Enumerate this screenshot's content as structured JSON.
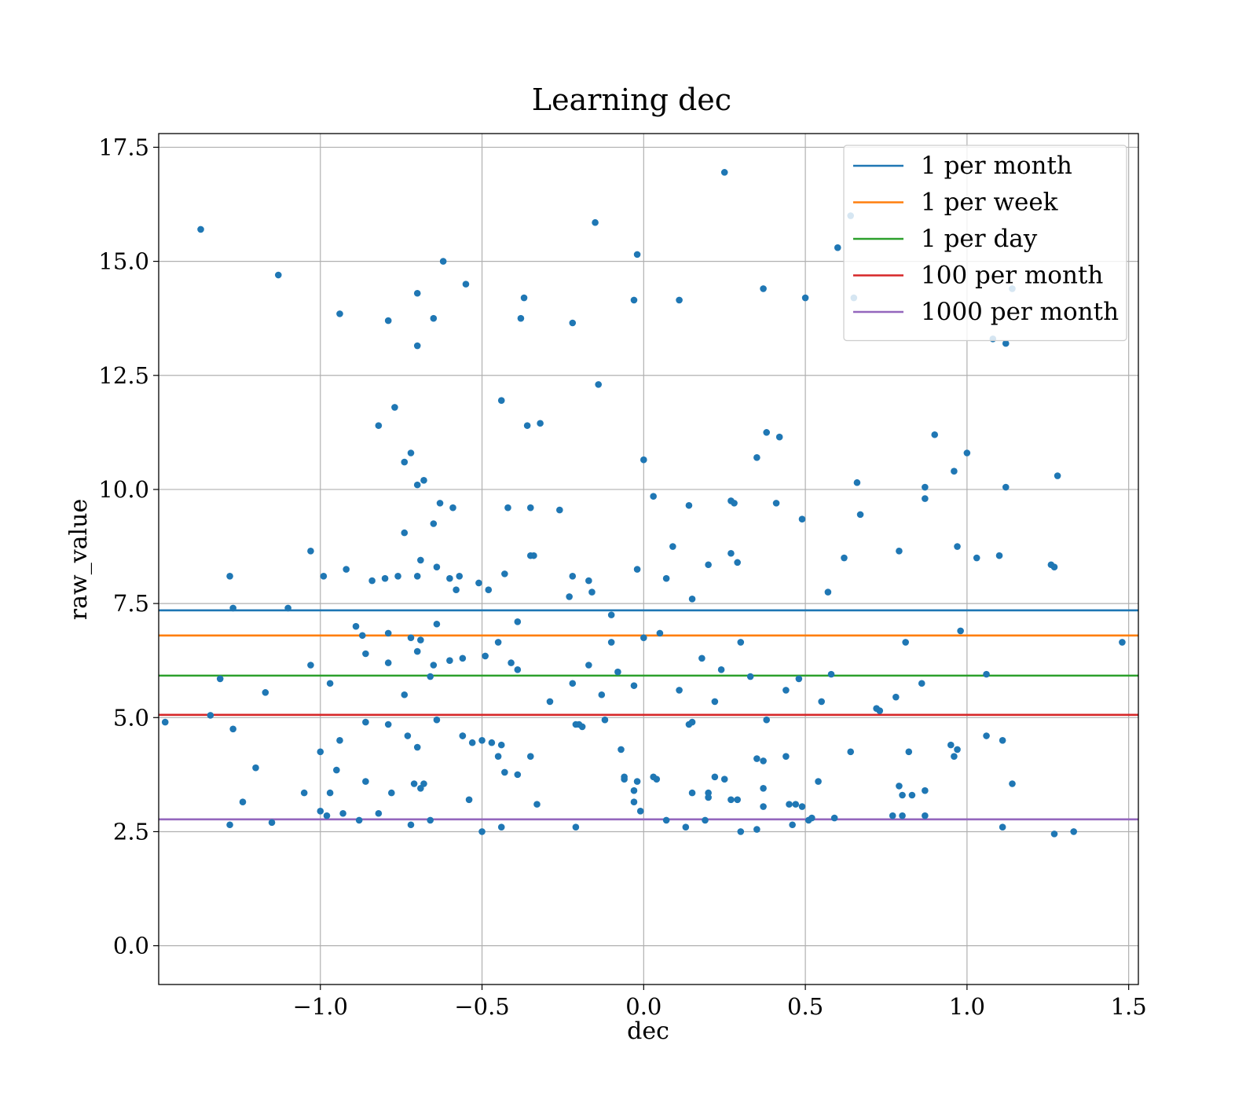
{
  "chart_data": {
    "type": "scatter",
    "title": "Learning dec",
    "xlabel": "dec",
    "ylabel": "raw_value",
    "xlim": [
      -1.5,
      1.53
    ],
    "ylim": [
      -0.85,
      17.8
    ],
    "xticks": [
      -1.0,
      -0.5,
      0.0,
      0.5,
      1.0,
      1.5
    ],
    "xtick_labels": [
      "−1.0",
      "−0.5",
      "0.0",
      "0.5",
      "1.0",
      "1.5"
    ],
    "yticks": [
      0.0,
      2.5,
      5.0,
      7.5,
      10.0,
      12.5,
      15.0,
      17.5
    ],
    "ytick_labels": [
      "0.0",
      "2.5",
      "5.0",
      "7.5",
      "10.0",
      "12.5",
      "15.0",
      "17.5"
    ],
    "grid": true,
    "legend_position": "top-right",
    "point_color": "#1f77b4",
    "hlines": [
      {
        "name": "1 per month",
        "y": 7.35,
        "color": "#1f77b4"
      },
      {
        "name": "1 per week",
        "y": 6.8,
        "color": "#ff7f0e"
      },
      {
        "name": "1 per day",
        "y": 5.92,
        "color": "#2ca02c"
      },
      {
        "name": "100 per month",
        "y": 5.06,
        "color": "#d62728"
      },
      {
        "name": "1000 per month",
        "y": 2.77,
        "color": "#9467bd"
      }
    ],
    "points": [
      [
        -1.37,
        15.7
      ],
      [
        -1.13,
        14.7
      ],
      [
        -0.94,
        13.85
      ],
      [
        -0.79,
        13.7
      ],
      [
        -0.7,
        14.3
      ],
      [
        -0.7,
        13.15
      ],
      [
        -0.65,
        13.75
      ],
      [
        -0.62,
        15.0
      ],
      [
        -0.55,
        14.5
      ],
      [
        -0.37,
        14.2
      ],
      [
        -0.38,
        13.75
      ],
      [
        -0.22,
        13.65
      ],
      [
        -0.15,
        15.85
      ],
      [
        -0.03,
        14.15
      ],
      [
        -0.02,
        15.15
      ],
      [
        0.11,
        14.15
      ],
      [
        0.25,
        16.95
      ],
      [
        0.37,
        14.4
      ],
      [
        0.5,
        14.2
      ],
      [
        0.6,
        15.3
      ],
      [
        0.64,
        16.0
      ],
      [
        0.65,
        14.2
      ],
      [
        1.08,
        13.3
      ],
      [
        1.12,
        13.2
      ],
      [
        1.14,
        14.4
      ],
      [
        -0.82,
        11.4
      ],
      [
        -0.77,
        11.8
      ],
      [
        -0.44,
        11.95
      ],
      [
        -0.36,
        11.4
      ],
      [
        -0.32,
        11.45
      ],
      [
        -0.14,
        12.3
      ],
      [
        -0.74,
        10.6
      ],
      [
        -0.72,
        10.8
      ],
      [
        -0.7,
        10.1
      ],
      [
        -0.68,
        10.2
      ],
      [
        -0.63,
        9.7
      ],
      [
        -0.59,
        9.6
      ],
      [
        -0.42,
        9.6
      ],
      [
        -0.35,
        9.6
      ],
      [
        -0.26,
        9.55
      ],
      [
        0.0,
        10.65
      ],
      [
        0.03,
        9.85
      ],
      [
        0.14,
        9.65
      ],
      [
        0.35,
        10.7
      ],
      [
        0.38,
        11.25
      ],
      [
        0.42,
        11.15
      ],
      [
        0.41,
        9.7
      ],
      [
        0.27,
        9.75
      ],
      [
        0.28,
        9.7
      ],
      [
        0.49,
        9.35
      ],
      [
        0.66,
        10.15
      ],
      [
        0.67,
        9.45
      ],
      [
        0.87,
        10.05
      ],
      [
        0.87,
        9.8
      ],
      [
        0.9,
        11.2
      ],
      [
        0.96,
        10.4
      ],
      [
        1.0,
        10.8
      ],
      [
        1.12,
        10.05
      ],
      [
        1.28,
        10.3
      ],
      [
        -0.74,
        9.05
      ],
      [
        -0.65,
        9.25
      ],
      [
        -0.64,
        8.3
      ],
      [
        -0.69,
        8.45
      ],
      [
        -0.35,
        8.55
      ],
      [
        -0.34,
        8.55
      ],
      [
        -0.43,
        8.15
      ],
      [
        -0.02,
        8.25
      ],
      [
        0.09,
        8.75
      ],
      [
        0.2,
        8.35
      ],
      [
        0.27,
        8.6
      ],
      [
        0.29,
        8.4
      ],
      [
        0.62,
        8.5
      ],
      [
        0.79,
        8.65
      ],
      [
        0.97,
        8.75
      ],
      [
        1.03,
        8.5
      ],
      [
        1.1,
        8.55
      ],
      [
        1.26,
        8.35
      ],
      [
        1.27,
        8.3
      ],
      [
        -1.28,
        8.1
      ],
      [
        -1.03,
        8.65
      ],
      [
        -0.99,
        8.1
      ],
      [
        -0.92,
        8.25
      ],
      [
        -0.84,
        8.0
      ],
      [
        -0.8,
        8.05
      ],
      [
        -0.76,
        8.1
      ],
      [
        -0.7,
        8.1
      ],
      [
        -0.6,
        8.05
      ],
      [
        -0.57,
        8.1
      ],
      [
        -0.51,
        7.95
      ],
      [
        -0.58,
        7.8
      ],
      [
        -0.48,
        7.8
      ],
      [
        -0.22,
        8.1
      ],
      [
        -0.23,
        7.65
      ],
      [
        -0.17,
        8.0
      ],
      [
        -0.16,
        7.75
      ],
      [
        0.07,
        8.05
      ],
      [
        0.15,
        7.6
      ],
      [
        0.57,
        7.75
      ],
      [
        -1.27,
        7.4
      ],
      [
        -1.1,
        7.4
      ],
      [
        -0.89,
        7.0
      ],
      [
        -0.39,
        7.1
      ],
      [
        -0.1,
        7.25
      ],
      [
        -0.87,
        6.8
      ],
      [
        -0.79,
        6.85
      ],
      [
        -0.72,
        6.75
      ],
      [
        -0.69,
        6.7
      ],
      [
        -0.64,
        7.05
      ],
      [
        -0.6,
        6.25
      ],
      [
        -0.56,
        6.3
      ],
      [
        -0.49,
        6.35
      ],
      [
        -0.45,
        6.65
      ],
      [
        -0.41,
        6.2
      ],
      [
        -0.39,
        6.05
      ],
      [
        -0.7,
        6.45
      ],
      [
        -0.66,
        5.9
      ],
      [
        -0.86,
        6.4
      ],
      [
        -0.79,
        6.2
      ],
      [
        -0.65,
        6.15
      ],
      [
        -1.03,
        6.15
      ],
      [
        0.05,
        6.85
      ],
      [
        0.0,
        6.75
      ],
      [
        -0.1,
        6.65
      ],
      [
        -0.08,
        6.0
      ],
      [
        0.18,
        6.3
      ],
      [
        0.24,
        6.05
      ],
      [
        0.3,
        6.65
      ],
      [
        0.33,
        5.9
      ],
      [
        0.48,
        5.85
      ],
      [
        0.58,
        5.95
      ],
      [
        0.81,
        6.65
      ],
      [
        0.98,
        6.9
      ],
      [
        1.06,
        5.95
      ],
      [
        1.48,
        6.65
      ],
      [
        -0.17,
        6.15
      ],
      [
        -1.31,
        5.85
      ],
      [
        -1.17,
        5.55
      ],
      [
        -0.97,
        5.75
      ],
      [
        -0.74,
        5.5
      ],
      [
        -0.29,
        5.35
      ],
      [
        -0.22,
        5.75
      ],
      [
        -0.13,
        5.5
      ],
      [
        -0.03,
        5.7
      ],
      [
        0.11,
        5.6
      ],
      [
        0.22,
        5.35
      ],
      [
        0.44,
        5.6
      ],
      [
        0.55,
        5.35
      ],
      [
        0.73,
        5.15
      ],
      [
        0.72,
        5.2
      ],
      [
        0.78,
        5.45
      ],
      [
        0.86,
        5.75
      ],
      [
        -1.48,
        4.9
      ],
      [
        -1.34,
        5.05
      ],
      [
        -1.27,
        4.75
      ],
      [
        -0.86,
        4.9
      ],
      [
        -0.79,
        4.85
      ],
      [
        -0.73,
        4.6
      ],
      [
        -0.7,
        4.35
      ],
      [
        -0.64,
        4.95
      ],
      [
        -0.56,
        4.6
      ],
      [
        -0.53,
        4.45
      ],
      [
        -0.5,
        4.5
      ],
      [
        -0.47,
        4.45
      ],
      [
        -0.45,
        4.15
      ],
      [
        -0.43,
        3.8
      ],
      [
        -0.39,
        3.75
      ],
      [
        -0.35,
        4.15
      ],
      [
        -0.21,
        4.85
      ],
      [
        -0.2,
        4.85
      ],
      [
        -0.19,
        4.8
      ],
      [
        -0.12,
        4.95
      ],
      [
        -0.07,
        4.3
      ],
      [
        0.14,
        4.85
      ],
      [
        0.15,
        4.9
      ],
      [
        0.35,
        4.1
      ],
      [
        0.37,
        4.05
      ],
      [
        0.38,
        4.95
      ],
      [
        0.44,
        4.15
      ],
      [
        0.64,
        4.25
      ],
      [
        0.82,
        4.25
      ],
      [
        0.95,
        4.4
      ],
      [
        0.96,
        4.15
      ],
      [
        0.97,
        4.3
      ],
      [
        1.06,
        4.6
      ],
      [
        1.11,
        4.5
      ],
      [
        -1.0,
        4.25
      ],
      [
        -0.94,
        4.5
      ],
      [
        -1.2,
        3.9
      ],
      [
        -0.95,
        3.85
      ],
      [
        -0.86,
        3.6
      ],
      [
        -0.56,
        4.6
      ],
      [
        -0.44,
        4.4
      ],
      [
        -1.24,
        3.15
      ],
      [
        -1.05,
        3.35
      ],
      [
        -0.97,
        3.35
      ],
      [
        -0.78,
        3.35
      ],
      [
        -0.71,
        3.55
      ],
      [
        -0.69,
        3.45
      ],
      [
        -0.68,
        3.55
      ],
      [
        -0.54,
        3.2
      ],
      [
        -0.33,
        3.1
      ],
      [
        -0.06,
        3.7
      ],
      [
        -0.06,
        3.65
      ],
      [
        -0.02,
        3.6
      ],
      [
        0.03,
        3.7
      ],
      [
        0.04,
        3.65
      ],
      [
        -0.03,
        3.4
      ],
      [
        0.15,
        3.35
      ],
      [
        0.2,
        3.35
      ],
      [
        0.2,
        3.25
      ],
      [
        0.22,
        3.7
      ],
      [
        0.25,
        3.65
      ],
      [
        0.27,
        3.2
      ],
      [
        0.29,
        3.2
      ],
      [
        0.37,
        3.45
      ],
      [
        0.37,
        3.05
      ],
      [
        0.45,
        3.1
      ],
      [
        0.47,
        3.1
      ],
      [
        0.49,
        3.05
      ],
      [
        0.54,
        3.6
      ],
      [
        0.79,
        3.5
      ],
      [
        0.8,
        3.3
      ],
      [
        0.83,
        3.3
      ],
      [
        0.87,
        3.4
      ],
      [
        1.14,
        3.55
      ],
      [
        -1.0,
        2.95
      ],
      [
        -0.98,
        2.85
      ],
      [
        -0.93,
        2.9
      ],
      [
        -0.88,
        2.75
      ],
      [
        -0.82,
        2.9
      ],
      [
        -0.72,
        2.65
      ],
      [
        -0.66,
        2.75
      ],
      [
        -0.44,
        2.6
      ],
      [
        -0.03,
        3.15
      ],
      [
        -0.01,
        2.95
      ],
      [
        0.07,
        2.75
      ],
      [
        0.13,
        2.6
      ],
      [
        0.19,
        2.75
      ],
      [
        0.3,
        2.5
      ],
      [
        0.35,
        2.55
      ],
      [
        0.46,
        2.65
      ],
      [
        0.51,
        2.75
      ],
      [
        0.52,
        2.8
      ],
      [
        0.59,
        2.8
      ],
      [
        0.77,
        2.85
      ],
      [
        0.8,
        2.85
      ],
      [
        0.87,
        2.85
      ],
      [
        1.11,
        2.6
      ],
      [
        1.27,
        2.45
      ],
      [
        1.33,
        2.5
      ],
      [
        -1.28,
        2.65
      ],
      [
        -1.15,
        2.7
      ],
      [
        -0.5,
        2.5
      ],
      [
        -0.21,
        2.6
      ]
    ]
  }
}
